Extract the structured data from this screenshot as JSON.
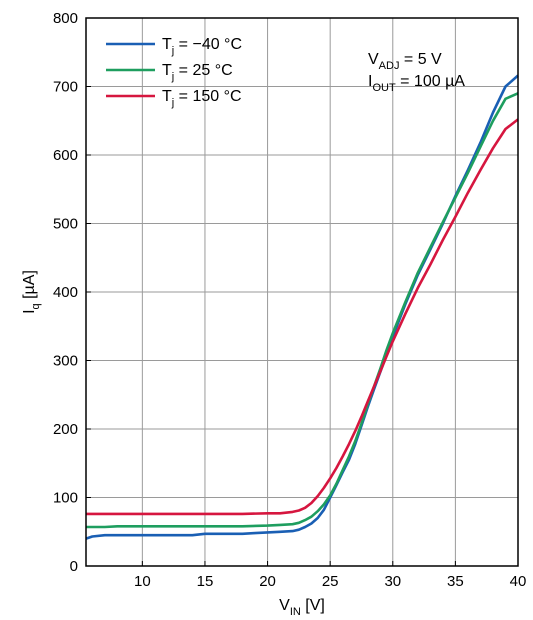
{
  "chart_data": {
    "type": "line",
    "xlabel": {
      "main": "V",
      "sub": "IN",
      "unit": " [V]"
    },
    "ylabel": {
      "main": "I",
      "sub": "q",
      "unit": " [µA]"
    },
    "xlim": [
      5.5,
      40
    ],
    "ylim": [
      0,
      800
    ],
    "xticks": [
      10,
      15,
      20,
      25,
      30,
      35,
      40
    ],
    "yticks": [
      0,
      100,
      200,
      300,
      400,
      500,
      600,
      700,
      800
    ],
    "grid": true,
    "legend_position": "top-left",
    "annotations": [
      {
        "main": "V",
        "sub": "ADJ",
        "rest": " = 5 V"
      },
      {
        "main": "I",
        "sub": "OUT",
        "rest": " = 100 µA"
      }
    ],
    "series": [
      {
        "name": {
          "main": "T",
          "sub": "j",
          "rest": " = −40 °C"
        },
        "color": "#1a5fb4",
        "points": [
          [
            5.5,
            40
          ],
          [
            6,
            43
          ],
          [
            7,
            45
          ],
          [
            10,
            45
          ],
          [
            14,
            45
          ],
          [
            15,
            47
          ],
          [
            18,
            47
          ],
          [
            19,
            48
          ],
          [
            20,
            49
          ],
          [
            21,
            50
          ],
          [
            22,
            51
          ],
          [
            22.5,
            53
          ],
          [
            23,
            57
          ],
          [
            23.5,
            62
          ],
          [
            24,
            70
          ],
          [
            24.5,
            82
          ],
          [
            25,
            100
          ],
          [
            25.5,
            118
          ],
          [
            26,
            137
          ],
          [
            26.5,
            155
          ],
          [
            27,
            178
          ],
          [
            27.5,
            205
          ],
          [
            28,
            232
          ],
          [
            28.5,
            258
          ],
          [
            29,
            283
          ],
          [
            29.5,
            308
          ],
          [
            30,
            335
          ],
          [
            31,
            382
          ],
          [
            32,
            425
          ],
          [
            33,
            462
          ],
          [
            34,
            500
          ],
          [
            35,
            540
          ],
          [
            36,
            578
          ],
          [
            37,
            618
          ],
          [
            38,
            662
          ],
          [
            39,
            700
          ],
          [
            40,
            716
          ]
        ]
      },
      {
        "name": {
          "main": "T",
          "sub": "j",
          "rest": " = 25 °C"
        },
        "color": "#1e9e5f",
        "points": [
          [
            5.5,
            57
          ],
          [
            7,
            57
          ],
          [
            8,
            58
          ],
          [
            10,
            58
          ],
          [
            15,
            58
          ],
          [
            18,
            58
          ],
          [
            20,
            59
          ],
          [
            21,
            60
          ],
          [
            22,
            61
          ],
          [
            22.5,
            63
          ],
          [
            23,
            67
          ],
          [
            23.5,
            72
          ],
          [
            24,
            80
          ],
          [
            24.5,
            90
          ],
          [
            25,
            103
          ],
          [
            25.5,
            120
          ],
          [
            26,
            140
          ],
          [
            26.5,
            160
          ],
          [
            27,
            182
          ],
          [
            27.5,
            208
          ],
          [
            28,
            236
          ],
          [
            28.5,
            262
          ],
          [
            29,
            288
          ],
          [
            29.5,
            315
          ],
          [
            30,
            340
          ],
          [
            31,
            385
          ],
          [
            32,
            428
          ],
          [
            33,
            465
          ],
          [
            34,
            502
          ],
          [
            35,
            538
          ],
          [
            36,
            574
          ],
          [
            37,
            612
          ],
          [
            38,
            650
          ],
          [
            39,
            682
          ],
          [
            40,
            690
          ]
        ]
      },
      {
        "name": {
          "main": "T",
          "sub": "j",
          "rest": " = 150 °C"
        },
        "color": "#d6163f",
        "points": [
          [
            5.5,
            76
          ],
          [
            8,
            76
          ],
          [
            10,
            76
          ],
          [
            15,
            76
          ],
          [
            18,
            76
          ],
          [
            20,
            77
          ],
          [
            21,
            77
          ],
          [
            22,
            79
          ],
          [
            22.5,
            81
          ],
          [
            23,
            85
          ],
          [
            23.5,
            92
          ],
          [
            24,
            102
          ],
          [
            24.5,
            114
          ],
          [
            25,
            128
          ],
          [
            25.5,
            143
          ],
          [
            26,
            160
          ],
          [
            26.5,
            178
          ],
          [
            27,
            197
          ],
          [
            27.5,
            218
          ],
          [
            28,
            240
          ],
          [
            28.5,
            262
          ],
          [
            29,
            284
          ],
          [
            29.5,
            306
          ],
          [
            30,
            328
          ],
          [
            31,
            368
          ],
          [
            32,
            406
          ],
          [
            33,
            440
          ],
          [
            34,
            476
          ],
          [
            35,
            510
          ],
          [
            36,
            545
          ],
          [
            37,
            578
          ],
          [
            38,
            610
          ],
          [
            39,
            638
          ],
          [
            40,
            652
          ]
        ]
      }
    ]
  }
}
